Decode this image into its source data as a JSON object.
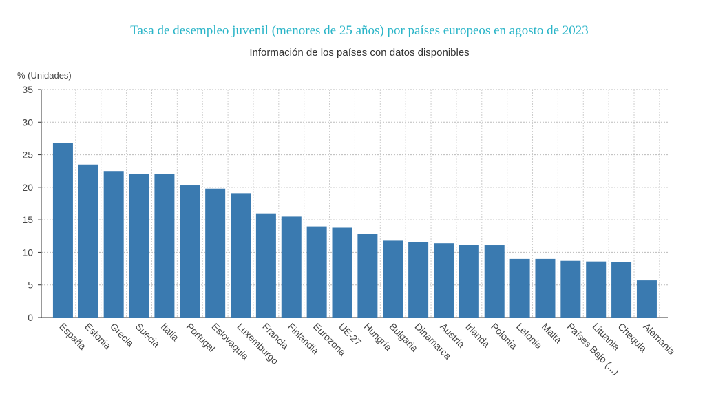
{
  "chart_data": {
    "type": "bar",
    "title": "Tasa de desempleo juvenil (menores de 25 años) por países europeos en agosto de 2023",
    "subtitle": "Información de los países con datos disponibles",
    "y_label": "% (Unidades)",
    "categories": [
      "España",
      "Estonia",
      "Grecia",
      "Suecia",
      "Italia",
      "Portugal",
      "Eslovaquia",
      "Luxemburgo",
      "Francia",
      "Finlandia",
      "Eurozona",
      "UE-27",
      "Hungría",
      "Bulgaria",
      "Dinamarca",
      "Austria",
      "Irlanda",
      "Polonia",
      "Letonia",
      "Malta",
      "Países Bajo (...)",
      "Lituania",
      "Chequia",
      "Alemania"
    ],
    "values": [
      26.8,
      23.5,
      22.5,
      22.1,
      22.0,
      20.3,
      19.8,
      19.1,
      16.0,
      15.5,
      14.0,
      13.8,
      12.8,
      11.8,
      11.6,
      11.4,
      11.2,
      11.1,
      9.0,
      9.0,
      8.7,
      8.6,
      8.5,
      5.7
    ],
    "color": "#3a7ab0",
    "ylim": [
      0,
      35
    ],
    "yticks": [
      0,
      5,
      10,
      15,
      20,
      25,
      30,
      35
    ],
    "grid": true
  }
}
